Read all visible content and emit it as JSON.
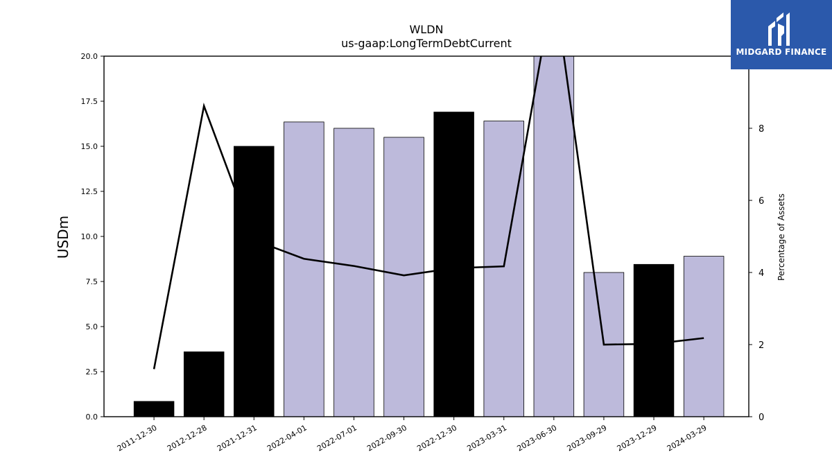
{
  "chart_data": {
    "type": "bar",
    "title": "WLDN",
    "subtitle": "us-gaap:LongTermDebtCurrent",
    "ylabel": "USDm",
    "y2label": "Percentage of Assets",
    "ylim": [
      0,
      20
    ],
    "y2lim": [
      0,
      10
    ],
    "yticks": [
      "0.0",
      "2.5",
      "5.0",
      "7.5",
      "10.0",
      "12.5",
      "15.0",
      "17.5",
      "20.0"
    ],
    "y2ticks": [
      "0",
      "2",
      "4",
      "6",
      "8"
    ],
    "categories": [
      "2011-12-30",
      "2012-12-28",
      "2021-12-31",
      "2022-04-01",
      "2022-07-01",
      "2022-09-30",
      "2022-12-30",
      "2023-03-31",
      "2023-06-30",
      "2023-09-29",
      "2023-12-29",
      "2024-03-29"
    ],
    "values": [
      0.85,
      3.6,
      15.0,
      16.35,
      16.0,
      15.5,
      16.9,
      16.4,
      20.5,
      8.0,
      8.45,
      8.9
    ],
    "bar_colors": [
      "#000000",
      "#000000",
      "#000000",
      "#bdbadb",
      "#bdbadb",
      "#bdbadb",
      "#000000",
      "#bdbadb",
      "#bdbadb",
      "#bdbadb",
      "#000000",
      "#bdbadb"
    ],
    "line_series": {
      "values": [
        1.32,
        8.62,
        4.9,
        4.38,
        4.18,
        3.92,
        4.12,
        4.17,
        12.0,
        2.0,
        2.02,
        2.18
      ]
    },
    "line_color": "#000000",
    "grid": false
  },
  "logo": {
    "text": "MIDGARD FINANCE",
    "background": "#2b59ab"
  }
}
